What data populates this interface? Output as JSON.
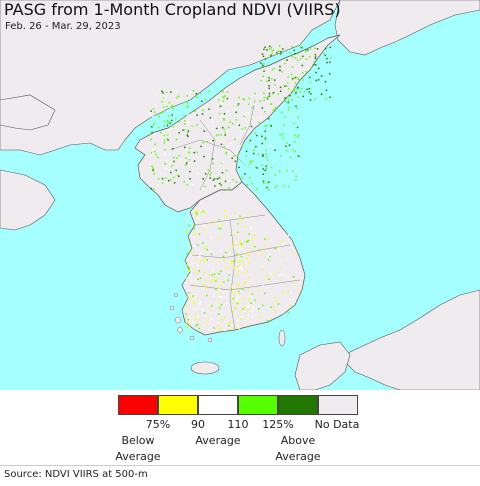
{
  "title": "PASG from 1-Month Cropland NDVI (VIIRS)",
  "subtitle": "Feb. 26 - Mar. 29, 2023",
  "colors": {
    "ocean": "#a6ffff",
    "land": "#efebee",
    "border": "#555555"
  },
  "legend": {
    "swatches": [
      {
        "color": "#ff0000",
        "class": "below-75"
      },
      {
        "color": "#ffff00",
        "class": "75-90"
      },
      {
        "color": "#ffffff",
        "class": "90-110"
      },
      {
        "color": "#55ff00",
        "class": "110-125"
      },
      {
        "color": "#227700",
        "class": "above-125"
      },
      {
        "color": "#efebee",
        "class": "no-data"
      }
    ],
    "ticks": [
      "75%",
      "90",
      "110",
      "125%"
    ],
    "no_data_label": "No Data",
    "below_line1": "Below",
    "below_line2": "Average",
    "average_label": "Average",
    "above_line1": "Above",
    "above_line2": "Average"
  },
  "source": "Source: NDVI VIIRS at 500-m"
}
